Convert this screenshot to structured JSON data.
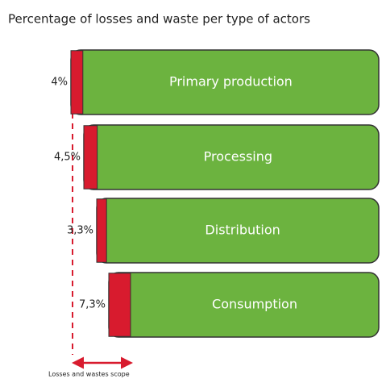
{
  "chart_data": {
    "type": "bar",
    "title": "Percentage of losses and waste per type of actors",
    "categories": [
      "Primary production",
      "Processing",
      "Distribution",
      "Consumption"
    ],
    "values": [
      4,
      4.5,
      3.3,
      7.3
    ],
    "value_labels": [
      "4%",
      "4,5%",
      "3,3%",
      "7,3%"
    ],
    "colors": {
      "loss": "#d81b2e",
      "rest": "#6cb33f"
    },
    "annotation": "Losses and wastes scope"
  }
}
